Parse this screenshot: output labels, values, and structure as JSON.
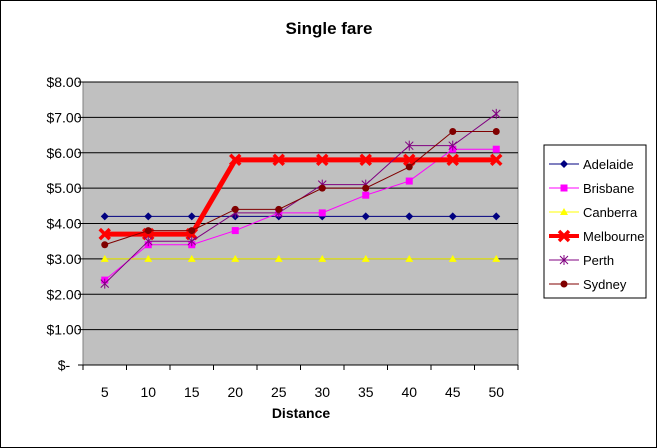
{
  "chart_data": {
    "type": "line",
    "title": "Single fare",
    "xlabel": "Distance",
    "ylabel": "",
    "categories": [
      "5",
      "10",
      "15",
      "20",
      "25",
      "30",
      "35",
      "40",
      "45",
      "50"
    ],
    "ylim": [
      0,
      8
    ],
    "yticks": [
      {
        "value": 0,
        "label": "$-"
      },
      {
        "value": 1,
        "label": "$1.00"
      },
      {
        "value": 2,
        "label": "$2.00"
      },
      {
        "value": 3,
        "label": "$3.00"
      },
      {
        "value": 4,
        "label": "$4.00"
      },
      {
        "value": 5,
        "label": "$5.00"
      },
      {
        "value": 6,
        "label": "$6.00"
      },
      {
        "value": 7,
        "label": "$7.00"
      },
      {
        "value": 8,
        "label": "$8.00"
      }
    ],
    "grid": true,
    "legend": "right",
    "plot_background": "#c0c0c0",
    "series": [
      {
        "name": "Adelaide",
        "color": "#000080",
        "marker": "diamond",
        "values": [
          4.2,
          4.2,
          4.2,
          4.2,
          4.2,
          4.2,
          4.2,
          4.2,
          4.2,
          4.2
        ]
      },
      {
        "name": "Brisbane",
        "color": "#ff00ff",
        "marker": "square",
        "values": [
          2.4,
          3.4,
          3.4,
          3.8,
          4.3,
          4.3,
          4.8,
          5.2,
          6.1,
          6.1
        ]
      },
      {
        "name": "Canberra",
        "color": "#ffff00",
        "marker": "triangle",
        "values": [
          3.0,
          3.0,
          3.0,
          3.0,
          3.0,
          3.0,
          3.0,
          3.0,
          3.0,
          3.0
        ]
      },
      {
        "name": "Melbourne",
        "color": "#ff0000",
        "marker": "x",
        "bold": true,
        "values": [
          3.7,
          3.7,
          3.7,
          5.8,
          5.8,
          5.8,
          5.8,
          5.8,
          5.8,
          5.8
        ]
      },
      {
        "name": "Perth",
        "color": "#800080",
        "marker": "star",
        "values": [
          2.3,
          3.5,
          3.5,
          4.3,
          4.3,
          5.1,
          5.1,
          6.2,
          6.2,
          7.1
        ]
      },
      {
        "name": "Sydney",
        "color": "#800000",
        "marker": "circle",
        "values": [
          3.4,
          3.8,
          3.8,
          4.4,
          4.4,
          5.0,
          5.0,
          5.6,
          6.6,
          6.6
        ]
      }
    ]
  }
}
